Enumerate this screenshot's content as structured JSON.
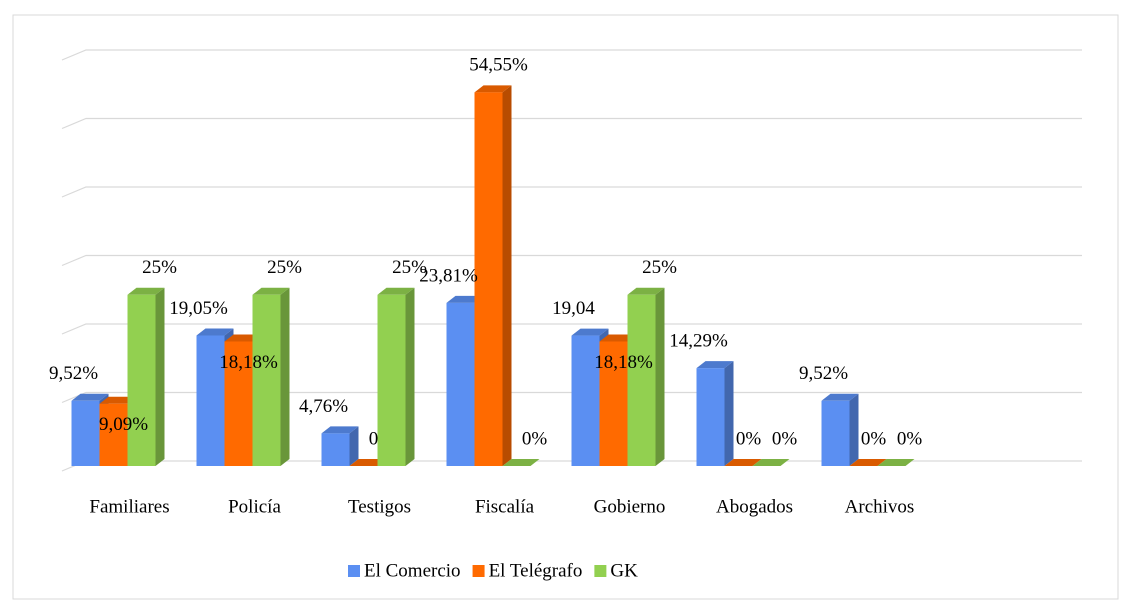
{
  "chart_data": {
    "type": "bar3d",
    "categories": [
      "Familiares",
      "Policía",
      "Testigos",
      "Fiscalía",
      "Gobierno",
      "Abogados",
      "Archivos"
    ],
    "series": [
      {
        "name": "El Comercio",
        "color": "#5b8ff2",
        "values": [
          9.52,
          19.05,
          4.76,
          23.81,
          19.04,
          14.29,
          9.52
        ],
        "value_labels": [
          "9,52%",
          "19,05%",
          "4,76%",
          "23,81%",
          "19,04",
          "14,29%",
          "9,52%"
        ]
      },
      {
        "name": "El Telégrafo",
        "color": "#ff6a00",
        "values": [
          9.09,
          18.18,
          0,
          54.55,
          18.18,
          0,
          0
        ],
        "value_labels": [
          "9,09%",
          "18,18%",
          "0",
          "54,55%",
          "18,18%",
          "0%",
          "0%"
        ]
      },
      {
        "name": "GK",
        "color": "#92d050",
        "values": [
          25,
          25,
          25,
          0,
          25,
          0,
          0
        ],
        "value_labels": [
          "25%",
          "25%",
          "25%",
          "0%",
          "25%",
          "0%",
          "0%"
        ]
      }
    ],
    "ylim": [
      0,
      60
    ],
    "yticks": [
      0,
      10,
      20,
      30,
      40,
      50,
      60
    ],
    "grid": true,
    "legend": "bottom"
  }
}
